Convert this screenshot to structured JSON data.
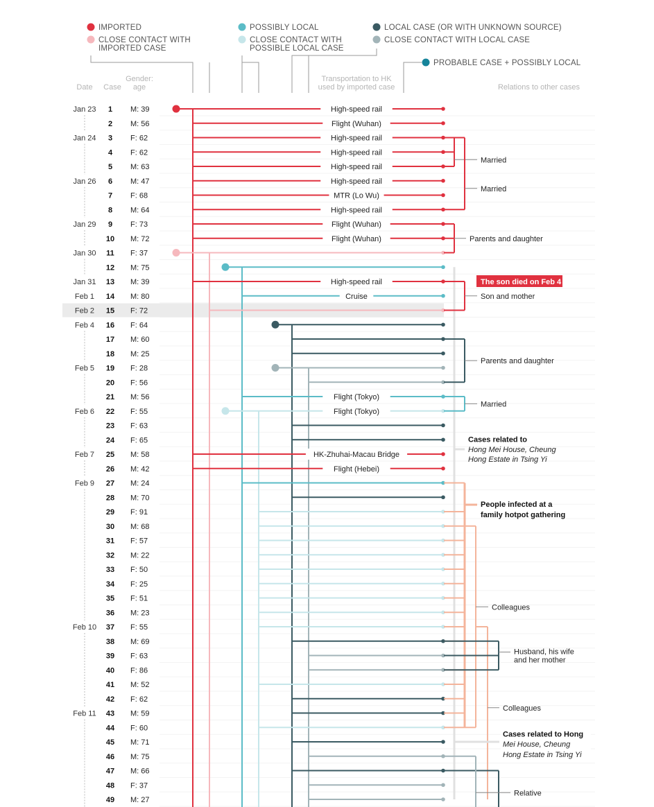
{
  "colors": {
    "imported": "#e0313f",
    "close_imported": "#f6b8bd",
    "possibly_local": "#5bbcc7",
    "close_possibly_local": "#c6e6ea",
    "local": "#3a5a62",
    "close_local": "#a2b4b8",
    "probable": "#16849a",
    "hotpot": "#f4b49b",
    "relations": "#e0e0e0"
  },
  "legend": [
    {
      "key": "imported",
      "label_lines": [
        "IMPORTED"
      ],
      "color": "#e0313f"
    },
    {
      "key": "close_imported",
      "label_lines": [
        "CLOSE CONTACT WITH",
        "IMPORTED CASE"
      ],
      "color": "#f6b8bd"
    },
    {
      "key": "possibly_local",
      "label_lines": [
        "POSSIBLY LOCAL"
      ],
      "color": "#5bbcc7"
    },
    {
      "key": "close_possibly_local",
      "label_lines": [
        "CLOSE CONTACT WITH",
        "POSSIBLE LOCAL CASE"
      ],
      "color": "#c6e6ea"
    },
    {
      "key": "local",
      "label_lines": [
        "LOCAL CASE (OR WITH UNKNOWN SOURCE)"
      ],
      "color": "#3a5a62"
    },
    {
      "key": "close_local",
      "label_lines": [
        "CLOSE CONTACT WITH LOCAL CASE"
      ],
      "color": "#a2b4b8"
    },
    {
      "key": "probable",
      "label_lines": [
        "PROBABLE CASE + POSSIBLY LOCAL"
      ],
      "color": "#16849a"
    }
  ],
  "headers": {
    "date": "Date",
    "case": "Case",
    "gender_age": [
      "Gender:",
      "age"
    ],
    "transport": [
      "Transportation to HK",
      "used by imported case"
    ],
    "relations": "Relations to other cases"
  },
  "chart_data": {
    "type": "table",
    "columns": [
      "Date",
      "Case",
      "Gender: age",
      "Transportation to HK used by imported case",
      "Relations to other cases"
    ],
    "rows": [
      {
        "date": "Jan 23",
        "case": "1",
        "ga": "M: 39",
        "transport": "High-speed rail",
        "category": "imported"
      },
      {
        "date": "",
        "case": "2",
        "ga": "M: 56",
        "transport": "Flight (Wuhan)",
        "category": "imported"
      },
      {
        "date": "Jan 24",
        "case": "3",
        "ga": "F: 62",
        "transport": "High-speed rail",
        "category": "imported"
      },
      {
        "date": "",
        "case": "4",
        "ga": "F: 62",
        "transport": "High-speed rail",
        "category": "imported"
      },
      {
        "date": "",
        "case": "5",
        "ga": "M: 63",
        "transport": "High-speed rail",
        "category": "imported"
      },
      {
        "date": "Jan 26",
        "case": "6",
        "ga": "M: 47",
        "transport": "High-speed rail",
        "category": "imported"
      },
      {
        "date": "",
        "case": "7",
        "ga": "F: 68",
        "transport": "MTR (Lo Wu)",
        "category": "imported"
      },
      {
        "date": "",
        "case": "8",
        "ga": "M: 64",
        "transport": "High-speed rail",
        "category": "imported"
      },
      {
        "date": "Jan 29",
        "case": "9",
        "ga": "F: 73",
        "transport": "Flight (Wuhan)",
        "category": "imported"
      },
      {
        "date": "",
        "case": "10",
        "ga": "M: 72",
        "transport": "Flight (Wuhan)",
        "category": "imported"
      },
      {
        "date": "Jan 30",
        "case": "11",
        "ga": "F: 37",
        "transport": "",
        "category": "close_imported"
      },
      {
        "date": "",
        "case": "12",
        "ga": "M: 75",
        "transport": "",
        "category": "possibly_local"
      },
      {
        "date": "Jan 31",
        "case": "13",
        "ga": "M: 39",
        "transport": "High-speed rail",
        "category": "imported"
      },
      {
        "date": "Feb 1",
        "case": "14",
        "ga": "M: 80",
        "transport": "Cruise",
        "category": "possibly_local"
      },
      {
        "date": "Feb 2",
        "case": "15",
        "ga": "F: 72",
        "transport": "",
        "category": "close_imported"
      },
      {
        "date": "Feb 4",
        "case": "16",
        "ga": "F: 64",
        "transport": "",
        "category": "local"
      },
      {
        "date": "",
        "case": "17",
        "ga": "M: 60",
        "transport": "",
        "category": "local"
      },
      {
        "date": "",
        "case": "18",
        "ga": "M: 25",
        "transport": "",
        "category": "local"
      },
      {
        "date": "Feb 5",
        "case": "19",
        "ga": "F: 28",
        "transport": "",
        "category": "close_local"
      },
      {
        "date": "",
        "case": "20",
        "ga": "F: 56",
        "transport": "",
        "category": "close_local"
      },
      {
        "date": "",
        "case": "21",
        "ga": "M: 56",
        "transport": "Flight (Tokyo)",
        "category": "possibly_local"
      },
      {
        "date": "Feb 6",
        "case": "22",
        "ga": "F: 55",
        "transport": "Flight (Tokyo)",
        "category": "close_possibly_local"
      },
      {
        "date": "",
        "case": "23",
        "ga": "F: 63",
        "transport": "",
        "category": "local"
      },
      {
        "date": "",
        "case": "24",
        "ga": "F: 65",
        "transport": "",
        "category": "local"
      },
      {
        "date": "Feb 7",
        "case": "25",
        "ga": "M: 58",
        "transport": "HK-Zhuhai-Macau Bridge",
        "category": "imported"
      },
      {
        "date": "",
        "case": "26",
        "ga": "M: 42",
        "transport": "Flight (Hebei)",
        "category": "imported"
      },
      {
        "date": "Feb 9",
        "case": "27",
        "ga": "M: 24",
        "transport": "",
        "category": "possibly_local"
      },
      {
        "date": "",
        "case": "28",
        "ga": "M: 70",
        "transport": "",
        "category": "local"
      },
      {
        "date": "",
        "case": "29",
        "ga": "F: 91",
        "transport": "",
        "category": "close_possibly_local"
      },
      {
        "date": "",
        "case": "30",
        "ga": "M: 68",
        "transport": "",
        "category": "close_possibly_local"
      },
      {
        "date": "",
        "case": "31",
        "ga": "F: 57",
        "transport": "",
        "category": "close_possibly_local"
      },
      {
        "date": "",
        "case": "32",
        "ga": "M: 22",
        "transport": "",
        "category": "close_possibly_local"
      },
      {
        "date": "",
        "case": "33",
        "ga": "F: 50",
        "transport": "",
        "category": "close_possibly_local"
      },
      {
        "date": "",
        "case": "34",
        "ga": "F: 25",
        "transport": "",
        "category": "close_possibly_local"
      },
      {
        "date": "",
        "case": "35",
        "ga": "F: 51",
        "transport": "",
        "category": "close_possibly_local"
      },
      {
        "date": "",
        "case": "36",
        "ga": "M: 23",
        "transport": "",
        "category": "close_possibly_local"
      },
      {
        "date": "Feb 10",
        "case": "37",
        "ga": "F: 55",
        "transport": "",
        "category": "close_possibly_local"
      },
      {
        "date": "",
        "case": "38",
        "ga": "M: 69",
        "transport": "",
        "category": "local"
      },
      {
        "date": "",
        "case": "39",
        "ga": "F: 63",
        "transport": "",
        "category": "close_local"
      },
      {
        "date": "",
        "case": "40",
        "ga": "F: 86",
        "transport": "",
        "category": "close_local"
      },
      {
        "date": "",
        "case": "41",
        "ga": "M: 52",
        "transport": "",
        "category": "close_possibly_local"
      },
      {
        "date": "",
        "case": "42",
        "ga": "F: 62",
        "transport": "",
        "category": "local"
      },
      {
        "date": "Feb 11",
        "case": "43",
        "ga": "M: 59",
        "transport": "",
        "category": "local"
      },
      {
        "date": "",
        "case": "44",
        "ga": "F: 60",
        "transport": "",
        "category": "close_possibly_local"
      },
      {
        "date": "",
        "case": "45",
        "ga": "M: 71",
        "transport": "",
        "category": "local"
      },
      {
        "date": "",
        "case": "46",
        "ga": "M: 75",
        "transport": "",
        "category": "close_local"
      },
      {
        "date": "",
        "case": "47",
        "ga": "M: 66",
        "transport": "",
        "category": "local"
      },
      {
        "date": "",
        "case": "48",
        "ga": "F: 37",
        "transport": "",
        "category": "close_local"
      },
      {
        "date": "",
        "case": "49",
        "ga": "M: 27",
        "transport": "",
        "category": "close_local"
      }
    ],
    "highlight_row_case": "15",
    "relations": [
      {
        "label": "Married",
        "cases": [
          "3",
          "4",
          "5"
        ],
        "style": "normal"
      },
      {
        "label": "Married",
        "cases": [
          "6",
          "8"
        ],
        "style": "normal"
      },
      {
        "label": "Parents and daughter",
        "cases": [
          "9",
          "10",
          "11"
        ],
        "style": "normal"
      },
      {
        "label": "The son died on Feb 4",
        "cases": [
          "13"
        ],
        "style": "callout"
      },
      {
        "label": "Son and mother",
        "cases": [
          "13",
          "15"
        ],
        "style": "normal"
      },
      {
        "label": "Parents and daughter",
        "cases": [
          "17",
          "20"
        ],
        "style": "normal"
      },
      {
        "label": "Married",
        "cases": [
          "21",
          "22"
        ],
        "style": "normal"
      },
      {
        "label_lines": [
          "Cases related to",
          "Hong Mei House, Cheung",
          "Hong Estate in Tsing Yi"
        ],
        "cases": [
          "12",
          "27"
        ],
        "style": "bold-italic"
      },
      {
        "label_lines": [
          "People infected at a",
          "family hotpot gathering"
        ],
        "cases": [
          "27",
          "44"
        ],
        "style": "bold"
      },
      {
        "label": "Colleagues",
        "cases": [
          "30",
          "37"
        ],
        "style": "normal"
      },
      {
        "label_lines": [
          "Husband, his wife",
          "and her mother"
        ],
        "cases": [
          "38",
          "40"
        ],
        "style": "normal"
      },
      {
        "label": "Colleagues",
        "cases": [
          "37",
          "44"
        ],
        "style": "normal"
      },
      {
        "label_lines": [
          "Cases related to Hong",
          "Mei House, Cheung",
          "Hong Estate in Tsing Yi"
        ],
        "cases": [
          "44",
          "46"
        ],
        "style": "bold-italic"
      },
      {
        "label": "Relative",
        "cases": [
          "47",
          "49"
        ],
        "style": "normal"
      }
    ]
  }
}
